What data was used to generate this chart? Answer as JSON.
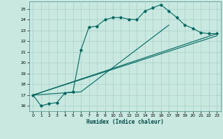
{
  "title": "",
  "xlabel": "Humidex (Indice chaleur)",
  "bg_color": "#c8e8e0",
  "line_color": "#006860",
  "grid_color": "#a8d0c8",
  "ylim": [
    15.5,
    25.7
  ],
  "xlim": [
    -0.5,
    23.5
  ],
  "yticks": [
    16,
    17,
    18,
    19,
    20,
    21,
    22,
    23,
    24,
    25
  ],
  "xticks": [
    0,
    1,
    2,
    3,
    4,
    5,
    6,
    7,
    8,
    9,
    10,
    11,
    12,
    13,
    14,
    15,
    16,
    17,
    18,
    19,
    20,
    21,
    22,
    23
  ],
  "y_main": [
    17.0,
    16.0,
    16.2,
    16.3,
    17.2,
    17.3,
    21.2,
    23.3,
    23.4,
    24.0,
    24.2,
    24.2,
    24.05,
    24.0,
    24.8,
    25.1,
    25.4,
    24.8,
    24.2,
    23.5,
    23.2,
    22.8,
    22.7,
    22.7
  ],
  "line2_x": [
    0,
    23
  ],
  "line2_y": [
    17.0,
    22.7
  ],
  "line3_x": [
    0,
    23
  ],
  "line3_y": [
    17.0,
    22.5
  ],
  "line4_x": [
    0,
    6,
    17
  ],
  "line4_y": [
    17.0,
    17.3,
    23.5
  ]
}
